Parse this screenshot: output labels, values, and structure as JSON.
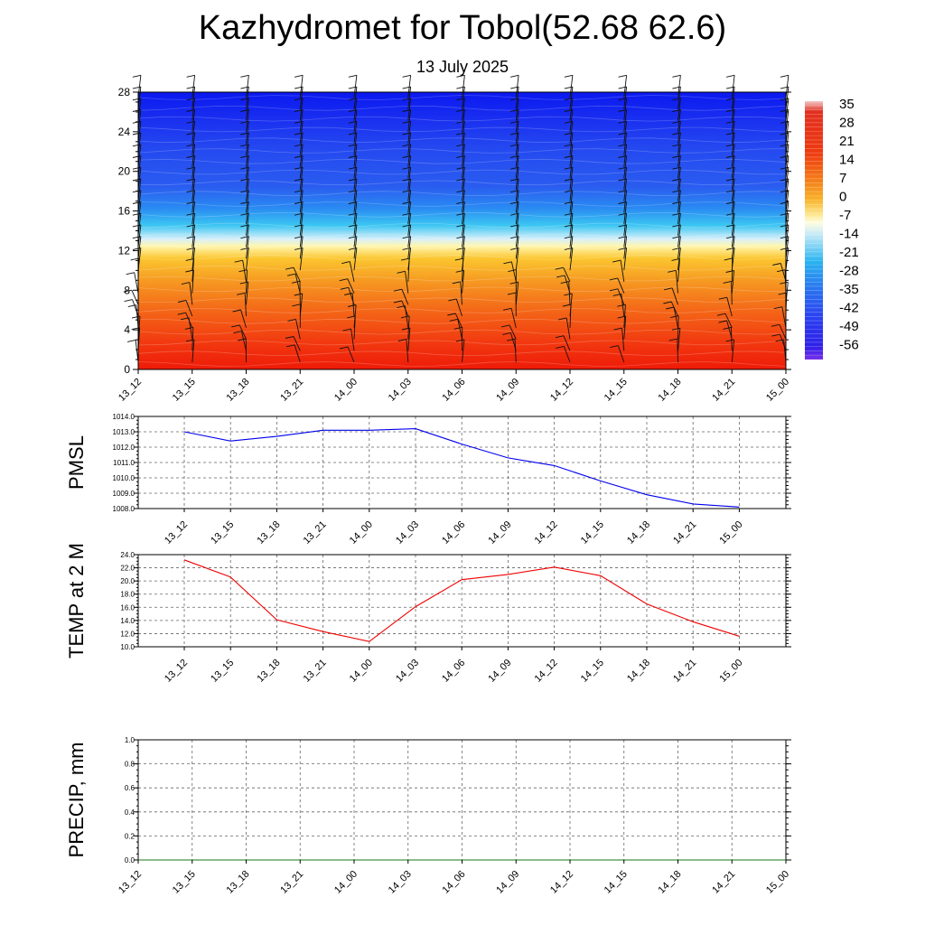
{
  "header": {
    "title": "Kazhydromet for Tobol(52.68 62.6)",
    "date": "13 July 2025"
  },
  "chart_data": [
    {
      "type": "heatmap",
      "title": "",
      "x_ticks": [
        "13_12",
        "13_15",
        "13_18",
        "13_21",
        "14_00",
        "14_03",
        "14_06",
        "14_09",
        "14_12",
        "14_15",
        "14_18",
        "14_21",
        "15_00"
      ],
      "y_ticks": [
        "0",
        "4",
        "8",
        "12",
        "16",
        "20",
        "24",
        "28"
      ],
      "ylim": [
        0,
        28
      ],
      "colorbar_labels": [
        "35",
        "28",
        "21",
        "14",
        "7",
        "0",
        "-7",
        "-14",
        "-21",
        "-28",
        "-35",
        "-42",
        "-49",
        "-56"
      ],
      "value_range": [
        -60,
        38
      ],
      "freezing_level": 12.5,
      "wind_barbs": true,
      "colors": {
        "cold": "#1020f0",
        "mid_cold": "#2a8cf2",
        "freezing": "#fff6b0",
        "warm": "#f5a020",
        "hot": "#ee1a08"
      }
    },
    {
      "type": "line",
      "ylabel": "PMSL",
      "x_ticks": [
        "13_12",
        "13_15",
        "13_18",
        "13_21",
        "14_00",
        "14_03",
        "14_06",
        "14_09",
        "14_12",
        "14_15",
        "14_18",
        "14_21",
        "15_00"
      ],
      "y_ticks": [
        "1008.0",
        "1009.0",
        "1010.0",
        "1011.0",
        "1012.0",
        "1013.0",
        "1014.0"
      ],
      "ylim": [
        1008,
        1014
      ],
      "values": [
        1013.0,
        1012.4,
        1012.7,
        1013.1,
        1013.1,
        1013.2,
        1012.2,
        1011.3,
        1010.8,
        1009.8,
        1008.9,
        1008.3,
        1008.1
      ],
      "color": "#0000ee",
      "grid": true
    },
    {
      "type": "line",
      "ylabel": "TEMP at 2 M",
      "x_ticks": [
        "13_12",
        "13_15",
        "13_18",
        "13_21",
        "14_00",
        "14_03",
        "14_06",
        "14_09",
        "14_12",
        "14_15",
        "14_18",
        "14_21",
        "15_00"
      ],
      "y_ticks": [
        "10.0",
        "12.0",
        "14.0",
        "16.0",
        "18.0",
        "20.0",
        "22.0",
        "24.0"
      ],
      "ylim": [
        10,
        24
      ],
      "values": [
        23.2,
        20.6,
        14.1,
        12.3,
        10.8,
        16.1,
        20.2,
        21.0,
        22.1,
        20.8,
        16.5,
        13.8,
        11.6
      ],
      "color": "#ee0000",
      "grid": true
    },
    {
      "type": "line",
      "ylabel": "PRECIP, mm",
      "x_ticks": [
        "13_12",
        "13_15",
        "13_18",
        "13_21",
        "14_00",
        "14_03",
        "14_06",
        "14_09",
        "14_12",
        "14_15",
        "14_18",
        "14_21",
        "15_00"
      ],
      "y_ticks": [
        "0.0",
        "0.2",
        "0.4",
        "0.6",
        "0.8",
        "1.0"
      ],
      "ylim": [
        0,
        1
      ],
      "values": [
        0,
        0,
        0,
        0,
        0,
        0,
        0,
        0,
        0,
        0,
        0,
        0,
        0
      ],
      "color": "#1a7a1a",
      "grid": true
    }
  ]
}
